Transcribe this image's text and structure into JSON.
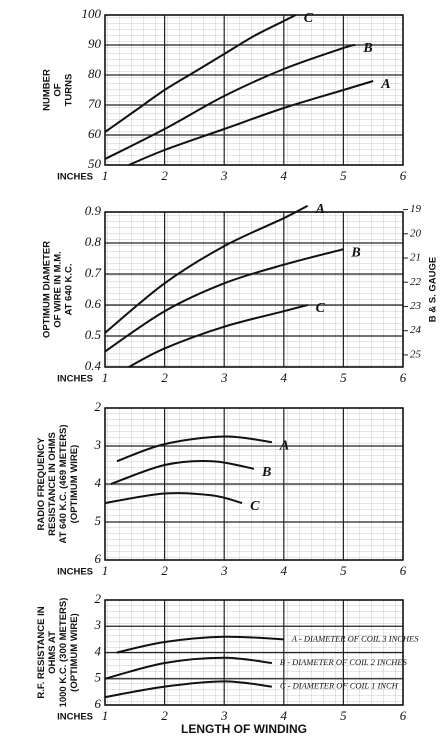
{
  "chart_data": [
    {
      "type": "line",
      "ylabel": [
        "NUMBER",
        "OF",
        "TURNS"
      ],
      "xunit": "INCHES",
      "xlim": [
        1,
        6
      ],
      "xticks": [
        1,
        2,
        3,
        4,
        5,
        6
      ],
      "ylim": [
        50,
        100
      ],
      "yticks": [
        50,
        60,
        70,
        80,
        90,
        100
      ],
      "grid": true,
      "series": [
        {
          "name": "C",
          "color": "#111111",
          "x": [
            1,
            1.5,
            2,
            2.5,
            3,
            3.5,
            4,
            4.2
          ],
          "values": [
            61,
            68,
            75,
            81,
            87,
            93,
            98,
            100
          ]
        },
        {
          "name": "B",
          "color": "#111111",
          "x": [
            1,
            2,
            3,
            4,
            5,
            5.2
          ],
          "values": [
            52,
            62,
            73,
            82,
            89,
            90
          ]
        },
        {
          "name": "A",
          "color": "#111111",
          "x": [
            1.4,
            2,
            3,
            4,
            5,
            5.5
          ],
          "values": [
            50,
            55,
            62,
            69,
            75,
            78
          ]
        }
      ]
    },
    {
      "type": "line",
      "ylabel": [
        "OPTIMUM DIAMETER",
        "OF WIRE IN M.M.",
        "AT 640 K.C."
      ],
      "y2label": "B & S. GAUGE",
      "xunit": "INCHES",
      "xlim": [
        1,
        6
      ],
      "xticks": [
        1,
        2,
        3,
        4,
        5,
        6
      ],
      "ylim": [
        0.4,
        0.9
      ],
      "yticks": [
        0.4,
        0.5,
        0.6,
        0.7,
        0.8,
        0.9
      ],
      "y2lim": [
        25.5,
        19.1
      ],
      "y2ticks": [
        19,
        20,
        21,
        22,
        23,
        24,
        25
      ],
      "grid": true,
      "series": [
        {
          "name": "A",
          "color": "#111111",
          "x": [
            1,
            2,
            3,
            4,
            4.4
          ],
          "values": [
            0.51,
            0.67,
            0.79,
            0.88,
            0.92
          ]
        },
        {
          "name": "B",
          "color": "#111111",
          "x": [
            1,
            2,
            3,
            4,
            5
          ],
          "values": [
            0.45,
            0.58,
            0.67,
            0.73,
            0.78
          ]
        },
        {
          "name": "C",
          "color": "#111111",
          "x": [
            1.4,
            2,
            3,
            4,
            4.4
          ],
          "values": [
            0.4,
            0.46,
            0.53,
            0.58,
            0.6
          ]
        }
      ]
    },
    {
      "type": "line",
      "ylabel": [
        "RADIO FREQUENCY",
        "RESISTANCE IN OHMS",
        "AT 640 K.C. (469 METERS)",
        "(OPTIMUM WIRE)"
      ],
      "xunit": "INCHES",
      "xlim": [
        1,
        6
      ],
      "xticks": [
        1,
        2,
        3,
        4,
        5,
        6
      ],
      "ylim": [
        6,
        2
      ],
      "yticks": [
        2,
        3,
        4,
        5,
        6
      ],
      "grid": true,
      "series": [
        {
          "name": "A",
          "color": "#111111",
          "x": [
            1.2,
            2,
            3,
            3.8
          ],
          "values": [
            3.4,
            2.95,
            2.75,
            2.9
          ]
        },
        {
          "name": "B",
          "color": "#111111",
          "x": [
            1.1,
            2,
            2.8,
            3.5
          ],
          "values": [
            4.0,
            3.5,
            3.4,
            3.6
          ]
        },
        {
          "name": "C",
          "color": "#111111",
          "x": [
            1,
            2,
            2.8,
            3.3
          ],
          "values": [
            4.5,
            4.25,
            4.3,
            4.5
          ]
        }
      ]
    },
    {
      "type": "line",
      "ylabel": [
        "R.F. RESISTANCE IN",
        "OHMS AT",
        "1000 K.C. (300 METERS)",
        "(OPTIMUM WIRE)"
      ],
      "xunit": "INCHES",
      "xlabel": "LENGTH OF WINDING",
      "xlim": [
        1,
        6
      ],
      "xticks": [
        1,
        2,
        3,
        4,
        5,
        6
      ],
      "ylim": [
        6,
        2
      ],
      "yticks": [
        2,
        3,
        4,
        5,
        6
      ],
      "grid": true,
      "series": [
        {
          "name": "A - DIAMETER OF COIL 3 INCHES",
          "color": "#111111",
          "x": [
            1.2,
            2,
            3,
            4
          ],
          "values": [
            4.0,
            3.6,
            3.4,
            3.5
          ]
        },
        {
          "name": "B - DIAMETER OF COIL 2 INCHES",
          "color": "#111111",
          "x": [
            1,
            2,
            3,
            3.8
          ],
          "values": [
            5.0,
            4.4,
            4.2,
            4.4
          ]
        },
        {
          "name": "C - DIAMETER OF COIL 1 INCH",
          "color": "#111111",
          "x": [
            1,
            2,
            3,
            3.8
          ],
          "values": [
            5.7,
            5.3,
            5.1,
            5.3
          ]
        }
      ]
    }
  ]
}
